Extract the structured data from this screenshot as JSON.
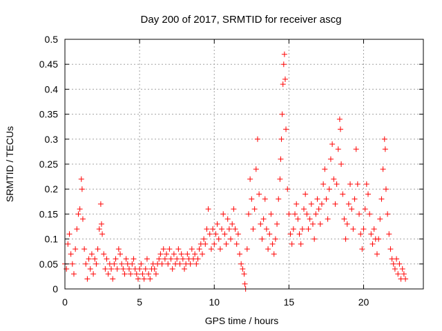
{
  "chart_data": {
    "type": "scatter",
    "title": "Day 200 of 2017, SRMTID for receiver ascg",
    "xlabel": "GPS time / hours",
    "ylabel": "SRMTID / TECUs",
    "xlim": [
      0,
      24
    ],
    "ylim": [
      0,
      0.5
    ],
    "x_ticks": [
      0,
      5,
      10,
      15,
      20
    ],
    "x_tick_labels": [
      "0",
      "5",
      "10",
      "15",
      "20"
    ],
    "y_ticks": [
      0,
      0.05,
      0.1,
      0.15,
      0.2,
      0.25,
      0.3,
      0.35,
      0.4,
      0.45,
      0.5
    ],
    "y_tick_labels": [
      "0",
      "0.05",
      "0.1",
      "0.15",
      "0.2",
      "0.25",
      "0.3",
      "0.35",
      "0.4",
      "0.45",
      "0.5"
    ],
    "grid": true,
    "marker": "plus",
    "color": "#ff0000",
    "series": [
      {
        "name": "SRMTID",
        "points": [
          [
            0.0,
            0.05
          ],
          [
            0.1,
            0.04
          ],
          [
            0.2,
            0.09
          ],
          [
            0.3,
            0.11
          ],
          [
            0.4,
            0.07
          ],
          [
            0.5,
            0.05
          ],
          [
            0.6,
            0.03
          ],
          [
            0.7,
            0.08
          ],
          [
            0.8,
            0.12
          ],
          [
            0.9,
            0.15
          ],
          [
            1.0,
            0.16
          ],
          [
            1.1,
            0.22
          ],
          [
            1.15,
            0.2
          ],
          [
            1.2,
            0.14
          ],
          [
            1.3,
            0.08
          ],
          [
            1.4,
            0.05
          ],
          [
            1.5,
            0.02
          ],
          [
            1.6,
            0.06
          ],
          [
            1.7,
            0.04
          ],
          [
            1.8,
            0.07
          ],
          [
            1.9,
            0.03
          ],
          [
            2.0,
            0.06
          ],
          [
            2.1,
            0.05
          ],
          [
            2.2,
            0.08
          ],
          [
            2.3,
            0.12
          ],
          [
            2.4,
            0.17
          ],
          [
            2.45,
            0.13
          ],
          [
            2.5,
            0.11
          ],
          [
            2.6,
            0.07
          ],
          [
            2.7,
            0.04
          ],
          [
            2.8,
            0.06
          ],
          [
            2.9,
            0.03
          ],
          [
            3.0,
            0.05
          ],
          [
            3.1,
            0.04
          ],
          [
            3.2,
            0.02
          ],
          [
            3.3,
            0.05
          ],
          [
            3.4,
            0.06
          ],
          [
            3.5,
            0.04
          ],
          [
            3.6,
            0.08
          ],
          [
            3.7,
            0.07
          ],
          [
            3.8,
            0.05
          ],
          [
            3.9,
            0.04
          ],
          [
            4.0,
            0.03
          ],
          [
            4.1,
            0.06
          ],
          [
            4.2,
            0.05
          ],
          [
            4.3,
            0.04
          ],
          [
            4.4,
            0.03
          ],
          [
            4.5,
            0.05
          ],
          [
            4.6,
            0.06
          ],
          [
            4.7,
            0.04
          ],
          [
            4.8,
            0.03
          ],
          [
            4.9,
            0.02
          ],
          [
            5.0,
            0.04
          ],
          [
            5.1,
            0.05
          ],
          [
            5.2,
            0.03
          ],
          [
            5.3,
            0.02
          ],
          [
            5.4,
            0.04
          ],
          [
            5.5,
            0.06
          ],
          [
            5.6,
            0.03
          ],
          [
            5.7,
            0.02
          ],
          [
            5.8,
            0.04
          ],
          [
            5.9,
            0.05
          ],
          [
            6.0,
            0.04
          ],
          [
            6.1,
            0.03
          ],
          [
            6.2,
            0.05
          ],
          [
            6.3,
            0.06
          ],
          [
            6.4,
            0.07
          ],
          [
            6.5,
            0.05
          ],
          [
            6.6,
            0.08
          ],
          [
            6.7,
            0.06
          ],
          [
            6.8,
            0.07
          ],
          [
            6.9,
            0.05
          ],
          [
            7.0,
            0.08
          ],
          [
            7.1,
            0.06
          ],
          [
            7.2,
            0.04
          ],
          [
            7.3,
            0.07
          ],
          [
            7.4,
            0.05
          ],
          [
            7.5,
            0.06
          ],
          [
            7.6,
            0.08
          ],
          [
            7.7,
            0.05
          ],
          [
            7.8,
            0.07
          ],
          [
            7.9,
            0.06
          ],
          [
            8.0,
            0.04
          ],
          [
            8.1,
            0.05
          ],
          [
            8.2,
            0.07
          ],
          [
            8.3,
            0.06
          ],
          [
            8.4,
            0.05
          ],
          [
            8.5,
            0.08
          ],
          [
            8.6,
            0.06
          ],
          [
            8.7,
            0.07
          ],
          [
            8.8,
            0.05
          ],
          [
            8.9,
            0.06
          ],
          [
            9.0,
            0.08
          ],
          [
            9.1,
            0.09
          ],
          [
            9.2,
            0.07
          ],
          [
            9.3,
            0.1
          ],
          [
            9.4,
            0.09
          ],
          [
            9.5,
            0.12
          ],
          [
            9.6,
            0.16
          ],
          [
            9.7,
            0.11
          ],
          [
            9.8,
            0.08
          ],
          [
            9.9,
            0.12
          ],
          [
            10.0,
            0.09
          ],
          [
            10.1,
            0.11
          ],
          [
            10.2,
            0.13
          ],
          [
            10.3,
            0.1
          ],
          [
            10.4,
            0.08
          ],
          [
            10.5,
            0.12
          ],
          [
            10.6,
            0.15
          ],
          [
            10.7,
            0.11
          ],
          [
            10.8,
            0.09
          ],
          [
            10.9,
            0.14
          ],
          [
            11.0,
            0.12
          ],
          [
            11.1,
            0.1
          ],
          [
            11.2,
            0.13
          ],
          [
            11.3,
            0.16
          ],
          [
            11.4,
            0.12
          ],
          [
            11.5,
            0.09
          ],
          [
            11.6,
            0.11
          ],
          [
            11.7,
            0.07
          ],
          [
            11.8,
            0.05
          ],
          [
            11.9,
            0.04
          ],
          [
            12.0,
            0.03
          ],
          [
            12.05,
            0.01
          ],
          [
            12.1,
            0.0
          ],
          [
            12.2,
            0.08
          ],
          [
            12.3,
            0.15
          ],
          [
            12.4,
            0.22
          ],
          [
            12.5,
            0.18
          ],
          [
            12.6,
            0.12
          ],
          [
            12.7,
            0.16
          ],
          [
            12.8,
            0.24
          ],
          [
            12.9,
            0.3
          ],
          [
            13.0,
            0.19
          ],
          [
            13.1,
            0.13
          ],
          [
            13.2,
            0.1
          ],
          [
            13.3,
            0.14
          ],
          [
            13.4,
            0.18
          ],
          [
            13.5,
            0.12
          ],
          [
            13.6,
            0.08
          ],
          [
            13.7,
            0.11
          ],
          [
            13.8,
            0.15
          ],
          [
            13.9,
            0.09
          ],
          [
            14.0,
            0.07
          ],
          [
            14.1,
            0.1
          ],
          [
            14.2,
            0.13
          ],
          [
            14.3,
            0.18
          ],
          [
            14.4,
            0.22
          ],
          [
            14.45,
            0.26
          ],
          [
            14.5,
            0.3
          ],
          [
            14.55,
            0.35
          ],
          [
            14.6,
            0.41
          ],
          [
            14.65,
            0.45
          ],
          [
            14.7,
            0.47
          ],
          [
            14.75,
            0.42
          ],
          [
            14.8,
            0.32
          ],
          [
            14.9,
            0.2
          ],
          [
            15.0,
            0.15
          ],
          [
            15.1,
            0.11
          ],
          [
            15.2,
            0.09
          ],
          [
            15.3,
            0.12
          ],
          [
            15.4,
            0.15
          ],
          [
            15.5,
            0.17
          ],
          [
            15.6,
            0.14
          ],
          [
            15.7,
            0.11
          ],
          [
            15.8,
            0.09
          ],
          [
            15.9,
            0.12
          ],
          [
            16.0,
            0.16
          ],
          [
            16.1,
            0.19
          ],
          [
            16.2,
            0.15
          ],
          [
            16.3,
            0.12
          ],
          [
            16.4,
            0.14
          ],
          [
            16.5,
            0.17
          ],
          [
            16.6,
            0.13
          ],
          [
            16.7,
            0.1
          ],
          [
            16.8,
            0.15
          ],
          [
            16.9,
            0.18
          ],
          [
            17.0,
            0.16
          ],
          [
            17.1,
            0.13
          ],
          [
            17.2,
            0.17
          ],
          [
            17.3,
            0.21
          ],
          [
            17.4,
            0.24
          ],
          [
            17.5,
            0.18
          ],
          [
            17.6,
            0.14
          ],
          [
            17.7,
            0.2
          ],
          [
            17.8,
            0.26
          ],
          [
            17.9,
            0.29
          ],
          [
            18.0,
            0.22
          ],
          [
            18.1,
            0.17
          ],
          [
            18.2,
            0.21
          ],
          [
            18.3,
            0.28
          ],
          [
            18.4,
            0.34
          ],
          [
            18.45,
            0.32
          ],
          [
            18.5,
            0.25
          ],
          [
            18.6,
            0.19
          ],
          [
            18.7,
            0.14
          ],
          [
            18.8,
            0.1
          ],
          [
            18.9,
            0.13
          ],
          [
            19.0,
            0.17
          ],
          [
            19.1,
            0.21
          ],
          [
            19.2,
            0.16
          ],
          [
            19.3,
            0.12
          ],
          [
            19.4,
            0.18
          ],
          [
            19.5,
            0.28
          ],
          [
            19.6,
            0.21
          ],
          [
            19.7,
            0.15
          ],
          [
            19.8,
            0.11
          ],
          [
            19.9,
            0.08
          ],
          [
            20.0,
            0.12
          ],
          [
            20.1,
            0.16
          ],
          [
            20.2,
            0.21
          ],
          [
            20.3,
            0.19
          ],
          [
            20.4,
            0.15
          ],
          [
            20.5,
            0.11
          ],
          [
            20.6,
            0.09
          ],
          [
            20.7,
            0.12
          ],
          [
            20.8,
            0.1
          ],
          [
            20.9,
            0.07
          ],
          [
            21.0,
            0.1
          ],
          [
            21.1,
            0.14
          ],
          [
            21.2,
            0.18
          ],
          [
            21.3,
            0.24
          ],
          [
            21.4,
            0.3
          ],
          [
            21.45,
            0.28
          ],
          [
            21.5,
            0.2
          ],
          [
            21.6,
            0.15
          ],
          [
            21.7,
            0.11
          ],
          [
            21.8,
            0.08
          ],
          [
            21.9,
            0.06
          ],
          [
            22.0,
            0.05
          ],
          [
            22.1,
            0.04
          ],
          [
            22.2,
            0.06
          ],
          [
            22.3,
            0.03
          ],
          [
            22.4,
            0.05
          ],
          [
            22.5,
            0.02
          ],
          [
            22.6,
            0.04
          ],
          [
            22.7,
            0.03
          ],
          [
            22.8,
            0.02
          ]
        ]
      }
    ]
  }
}
